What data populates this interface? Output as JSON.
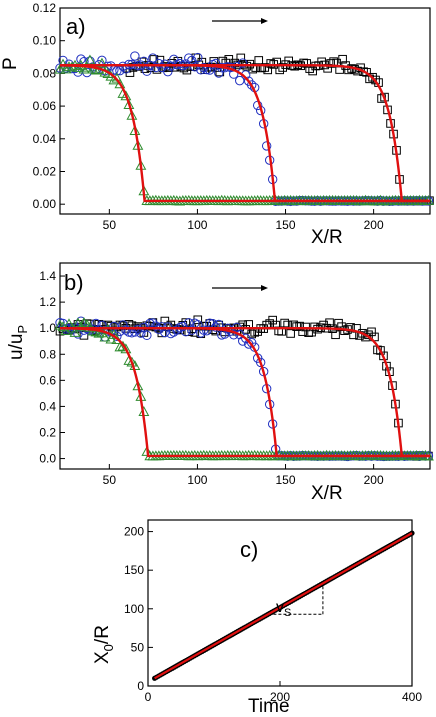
{
  "chart_data": [
    {
      "type": "scatter",
      "panel_label": "a)",
      "xlabel": "X/R",
      "ylabel": "P",
      "xlim": [
        22,
        232
      ],
      "ylim": [
        -0.006,
        0.12
      ],
      "xticks": [
        50,
        100,
        150,
        200
      ],
      "yticks": [
        0.0,
        0.02,
        0.04,
        0.06,
        0.08,
        0.1,
        0.12
      ],
      "ytick_labels": [
        "0.00",
        "0.02",
        "0.04",
        "0.06",
        "0.08",
        "0.10",
        "0.12"
      ],
      "arrow_direction": "right",
      "front_shape": {
        "plateau": 0.085,
        "baseline": 0.002
      },
      "series": [
        {
          "marker": "triangle",
          "color": "#2e8b2e",
          "front_x": 70,
          "x_start": 22,
          "x_end": 232,
          "seed": 11,
          "noise": 0.006
        },
        {
          "marker": "circle",
          "color": "#2030c0",
          "front_x": 144,
          "x_start": 22,
          "x_end": 232,
          "seed": 23,
          "noise": 0.008
        },
        {
          "marker": "square",
          "color": "#000000",
          "front_x": 216,
          "x_start": 60,
          "x_end": 232,
          "seed": 37,
          "noise": 0.006
        }
      ],
      "fit_color": "#e01010"
    },
    {
      "type": "scatter",
      "panel_label": "b)",
      "xlabel": "X/R",
      "ylabel": "u/u",
      "ylabel_sub": "P",
      "xlim": [
        22,
        232
      ],
      "ylim": [
        -0.08,
        1.5
      ],
      "xticks": [
        50,
        100,
        150,
        200
      ],
      "yticks": [
        0.0,
        0.2,
        0.4,
        0.6,
        0.8,
        1.0,
        1.2,
        1.4
      ],
      "ytick_labels": [
        "0.0",
        "0.2",
        "0.4",
        "0.6",
        "0.8",
        "1.0",
        "1.2",
        "1.4"
      ],
      "arrow_direction": "right",
      "front_shape": {
        "plateau": 1.0,
        "baseline": 0.02
      },
      "series": [
        {
          "marker": "triangle",
          "color": "#2e8b2e",
          "front_x": 72,
          "x_start": 22,
          "x_end": 232,
          "seed": 51,
          "noise": 0.08
        },
        {
          "marker": "circle",
          "color": "#2030c0",
          "front_x": 145,
          "x_start": 22,
          "x_end": 232,
          "seed": 63,
          "noise": 0.09
        },
        {
          "marker": "square",
          "color": "#000000",
          "front_x": 216,
          "x_start": 22,
          "x_end": 232,
          "seed": 77,
          "noise": 0.08
        }
      ],
      "fit_color": "#e01010"
    },
    {
      "type": "line",
      "panel_label": "c)",
      "xlabel": "Time",
      "ylabel": "X",
      "ylabel_sub": "0",
      "ylabel_suffix": "/R",
      "xlim": [
        0,
        400
      ],
      "ylim": [
        0,
        215
      ],
      "xticks": [
        0,
        200,
        400
      ],
      "yticks": [
        0,
        50,
        100,
        150,
        200
      ],
      "annotation": "v",
      "annotation_sub": "S",
      "line": {
        "x": [
          10,
          400
        ],
        "y": [
          10,
          198
        ]
      },
      "slope_triangle": {
        "x": [
          190,
          265
        ],
        "y": [
          93,
          130
        ]
      },
      "data_color": "#000000",
      "fit_color": "#e01010"
    }
  ]
}
